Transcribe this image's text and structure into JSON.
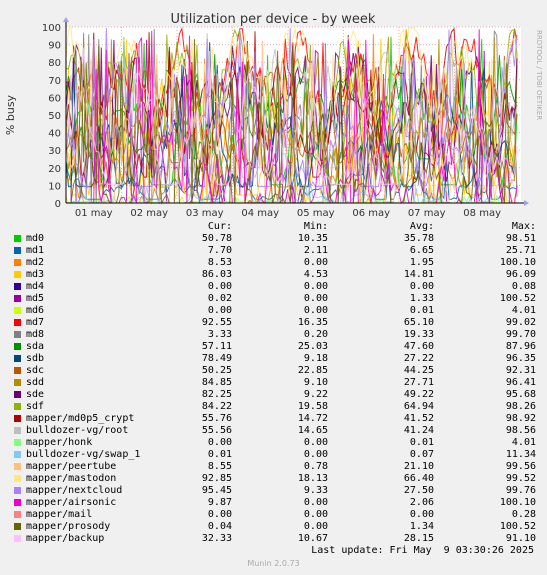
{
  "chart_data": {
    "type": "line",
    "title": "Utilization per device - by week",
    "ylabel": "% busy",
    "ylim": [
      0,
      100
    ],
    "yticks": [
      0,
      10,
      20,
      30,
      40,
      50,
      60,
      70,
      80,
      90,
      100
    ],
    "xticks": [
      "01 may",
      "02 may",
      "03 may",
      "04 may",
      "05 may",
      "06 may",
      "07 may",
      "08 may"
    ],
    "grid": true,
    "side_label": "RRDTOOL / TOBI OETIKER",
    "legend_headers": {
      "cur": "Cur:",
      "min": "Min:",
      "avg": "Avg:",
      "max": "Max:"
    },
    "series": [
      {
        "name": "md0",
        "color": "#00cc00",
        "cur": "50.78",
        "min": "10.35",
        "avg": "35.78",
        "max": "98.51"
      },
      {
        "name": "md1",
        "color": "#0066b3",
        "cur": "7.70",
        "min": "2.11",
        "avg": "6.65",
        "max": "25.71"
      },
      {
        "name": "md2",
        "color": "#ff8000",
        "cur": "8.53",
        "min": "0.00",
        "avg": "1.95",
        "max": "100.10"
      },
      {
        "name": "md3",
        "color": "#ffcc00",
        "cur": "86.03",
        "min": "4.53",
        "avg": "14.81",
        "max": "96.09"
      },
      {
        "name": "md4",
        "color": "#330099",
        "cur": "0.00",
        "min": "0.00",
        "avg": "0.00",
        "max": "0.08"
      },
      {
        "name": "md5",
        "color": "#990099",
        "cur": "0.02",
        "min": "0.00",
        "avg": "1.33",
        "max": "100.52"
      },
      {
        "name": "md6",
        "color": "#ccff00",
        "cur": "0.00",
        "min": "0.00",
        "avg": "0.01",
        "max": "4.01"
      },
      {
        "name": "md7",
        "color": "#ff0000",
        "cur": "92.55",
        "min": "16.35",
        "avg": "65.10",
        "max": "99.02"
      },
      {
        "name": "md8",
        "color": "#808080",
        "cur": "3.33",
        "min": "0.20",
        "avg": "19.33",
        "max": "99.70"
      },
      {
        "name": "sda",
        "color": "#008f00",
        "cur": "57.11",
        "min": "25.03",
        "avg": "47.60",
        "max": "87.96"
      },
      {
        "name": "sdb",
        "color": "#00487d",
        "cur": "78.49",
        "min": "9.18",
        "avg": "27.22",
        "max": "96.35"
      },
      {
        "name": "sdc",
        "color": "#b35a00",
        "cur": "50.25",
        "min": "22.85",
        "avg": "44.25",
        "max": "92.31"
      },
      {
        "name": "sdd",
        "color": "#b38f00",
        "cur": "84.85",
        "min": "9.10",
        "avg": "27.71",
        "max": "96.41"
      },
      {
        "name": "sde",
        "color": "#6b006b",
        "cur": "82.25",
        "min": "9.22",
        "avg": "49.22",
        "max": "95.68"
      },
      {
        "name": "sdf",
        "color": "#8fb300",
        "cur": "84.22",
        "min": "19.58",
        "avg": "64.94",
        "max": "98.26"
      },
      {
        "name": "mapper/md0p5_crypt",
        "color": "#b30000",
        "cur": "55.76",
        "min": "14.72",
        "avg": "41.52",
        "max": "98.92"
      },
      {
        "name": "bulldozer-vg/root",
        "color": "#bebebe",
        "cur": "55.56",
        "min": "14.65",
        "avg": "41.24",
        "max": "98.56"
      },
      {
        "name": "mapper/honk",
        "color": "#80ff80",
        "cur": "0.00",
        "min": "0.00",
        "avg": "0.01",
        "max": "4.01"
      },
      {
        "name": "bulldozer-vg/swap_1",
        "color": "#80c9ff",
        "cur": "0.01",
        "min": "0.00",
        "avg": "0.07",
        "max": "11.34"
      },
      {
        "name": "mapper/peertube",
        "color": "#ffc080",
        "cur": "8.55",
        "min": "0.78",
        "avg": "21.10",
        "max": "99.56"
      },
      {
        "name": "mapper/mastodon",
        "color": "#ffe680",
        "cur": "92.85",
        "min": "18.13",
        "avg": "66.40",
        "max": "99.52"
      },
      {
        "name": "mapper/nextcloud",
        "color": "#aa80ff",
        "cur": "95.45",
        "min": "9.33",
        "avg": "27.50",
        "max": "99.76"
      },
      {
        "name": "mapper/airsonic",
        "color": "#ee00cc",
        "cur": "9.87",
        "min": "0.00",
        "avg": "2.06",
        "max": "100.10"
      },
      {
        "name": "mapper/mail",
        "color": "#ff8080",
        "cur": "0.00",
        "min": "0.00",
        "avg": "0.00",
        "max": "0.28"
      },
      {
        "name": "mapper/prosody",
        "color": "#666600",
        "cur": "0.04",
        "min": "0.00",
        "avg": "1.34",
        "max": "100.52"
      },
      {
        "name": "mapper/backup",
        "color": "#ffbfff",
        "cur": "32.33",
        "min": "10.67",
        "avg": "28.15",
        "max": "91.10"
      }
    ],
    "last_update": "Last update: Fri May  9 03:30:26 2025",
    "footer": "Munin 2.0.73"
  }
}
